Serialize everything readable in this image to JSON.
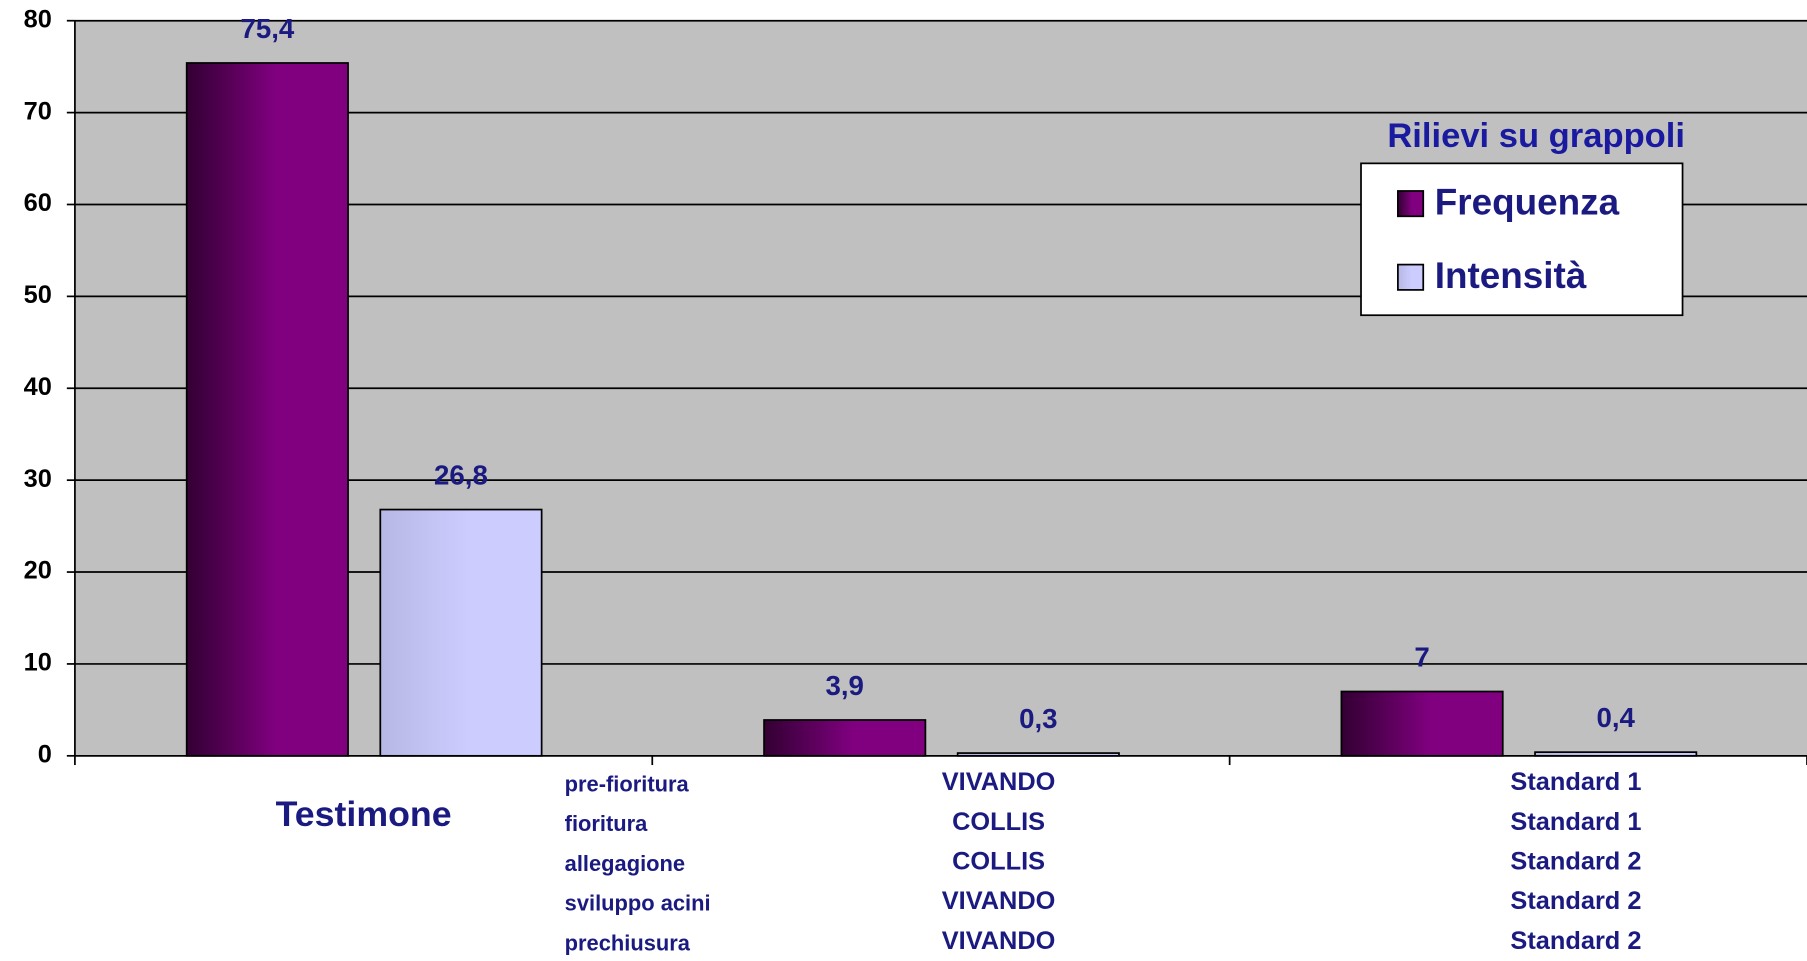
{
  "chart_data": {
    "type": "bar",
    "categories": [
      [
        "Testimone"
      ],
      [
        "VIVANDO",
        "COLLIS",
        "COLLIS",
        "VIVANDO",
        "VIVANDO"
      ],
      [
        "Standard 1",
        "Standard 1",
        "Standard 2",
        "Standard 2",
        "Standard 2"
      ]
    ],
    "stage_labels": [
      "pre-fioritura",
      "fioritura",
      "allegagione",
      "sviluppo acini",
      "prechiusura"
    ],
    "legend_title": "Rilievi su grappoli",
    "legend_position": "upper right",
    "series": [
      {
        "name": "Frequenza",
        "color": "#800080",
        "values": [
          75.4,
          3.9,
          7
        ],
        "value_labels": [
          "75,4",
          "3,9",
          "7"
        ]
      },
      {
        "name": "Intensità",
        "color": "#ccccff",
        "values": [
          26.8,
          0.3,
          0.4
        ],
        "value_labels": [
          "26,8",
          "0,3",
          "0,4"
        ]
      }
    ],
    "ylim": [
      0,
      80
    ],
    "yticks": [
      0,
      10,
      20,
      30,
      40,
      50,
      60,
      70,
      80
    ],
    "grid": true
  }
}
